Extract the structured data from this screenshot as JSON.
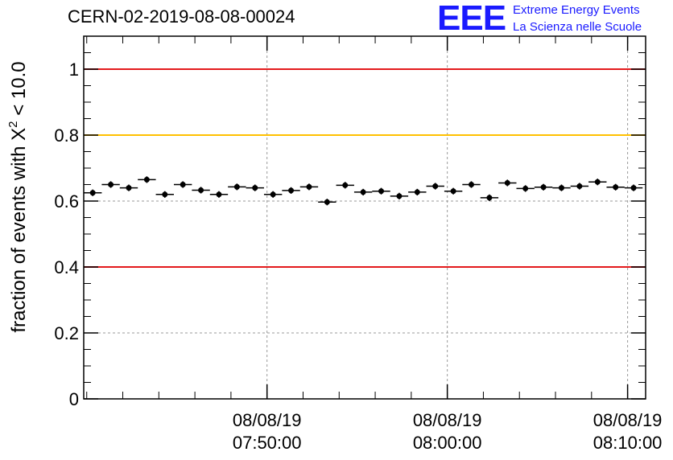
{
  "title": "CERN-02-2019-08-08-00024",
  "logo": {
    "letters": "EEE",
    "line1": "Extreme Energy Events",
    "line2": "La Scienza nelle Scuole"
  },
  "colors": {
    "red_reference": "#e31a1c",
    "yellow_reference": "#ffc000",
    "data_marker": "#000000",
    "logo_blue": "#1a1aff"
  },
  "chart_data": {
    "type": "scatter",
    "title": "CERN-02-2019-08-08-00024",
    "ylabel_parts": {
      "prefix": "fraction of events with X",
      "superscript": "2",
      "suffix": " < 10.0"
    },
    "xlabel": "",
    "ylim": [
      0,
      1.1
    ],
    "yticks": [
      0,
      0.2,
      0.4,
      0.6,
      0.8,
      1
    ],
    "ytick_labels": [
      "0",
      "0.2",
      "0.4",
      "0.6",
      "0.8",
      "1"
    ],
    "xlim": [
      "2019-08-08 07:39:50",
      "2019-08-08 08:11:00"
    ],
    "xticks": [
      {
        "date": "08/08/19",
        "time": "07:50:00"
      },
      {
        "date": "08/08/19",
        "time": "08:00:00"
      },
      {
        "date": "08/08/19",
        "time": "08:10:00"
      }
    ],
    "grid": true,
    "reference_lines": [
      {
        "y": 1.0,
        "color": "red"
      },
      {
        "y": 0.8,
        "color": "yellow"
      },
      {
        "y": 0.4,
        "color": "red"
      }
    ],
    "bin_width_minutes": 1,
    "series": [
      {
        "x": [
          "07:40:20",
          "07:41:20",
          "07:42:20",
          "07:43:20",
          "07:44:20",
          "07:45:20",
          "07:46:20",
          "07:47:20",
          "07:48:20",
          "07:49:20",
          "07:50:20",
          "07:51:20",
          "07:52:20",
          "07:53:20",
          "07:54:20",
          "07:55:20",
          "07:56:20",
          "07:57:20",
          "07:58:20",
          "07:59:20",
          "08:00:20",
          "08:01:20",
          "08:02:20",
          "08:03:20",
          "08:04:20",
          "08:05:20",
          "08:06:20",
          "08:07:20",
          "08:08:20",
          "08:09:20",
          "08:10:20"
        ],
        "y": [
          0.625,
          0.65,
          0.64,
          0.665,
          0.62,
          0.65,
          0.633,
          0.62,
          0.643,
          0.64,
          0.62,
          0.632,
          0.643,
          0.597,
          0.648,
          0.627,
          0.63,
          0.615,
          0.627,
          0.645,
          0.63,
          0.65,
          0.61,
          0.655,
          0.638,
          0.642,
          0.64,
          0.645,
          0.658,
          0.642,
          0.64
        ],
        "yerr": 0.01
      }
    ]
  }
}
